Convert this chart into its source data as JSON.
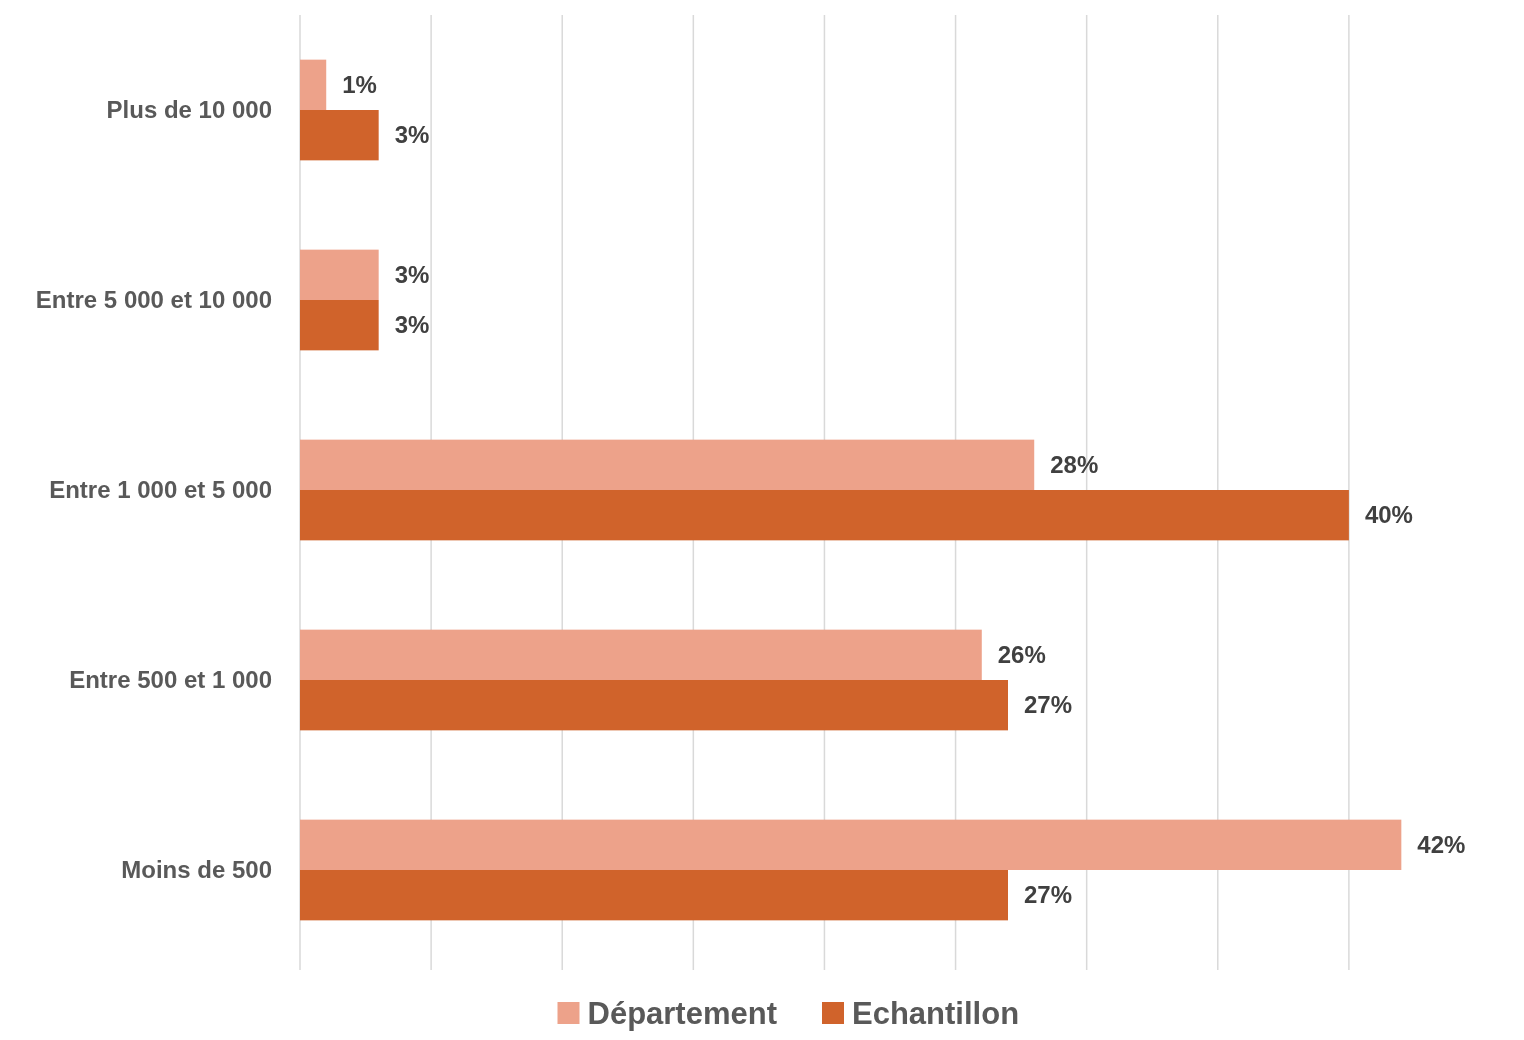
{
  "chart_data": {
    "type": "bar",
    "orientation": "horizontal",
    "categories": [
      "Plus de 10 000",
      "Entre 5 000 et 10 000",
      "Entre 1 000 et 5 000",
      "Entre 500 et 1 000",
      "Moins de 500"
    ],
    "series": [
      {
        "name": "Département",
        "color": "#eda28a",
        "values": [
          1,
          3,
          28,
          26,
          42
        ],
        "value_labels": [
          "1%",
          "3%",
          "28%",
          "26%",
          "42%"
        ]
      },
      {
        "name": "Echantillon",
        "color": "#d0632b",
        "values": [
          3,
          3,
          40,
          27,
          27
        ],
        "value_labels": [
          "3%",
          "3%",
          "40%",
          "27%",
          "27%"
        ]
      }
    ],
    "tick_labels": "y",
    "grid": "x",
    "legend": "bottom"
  }
}
